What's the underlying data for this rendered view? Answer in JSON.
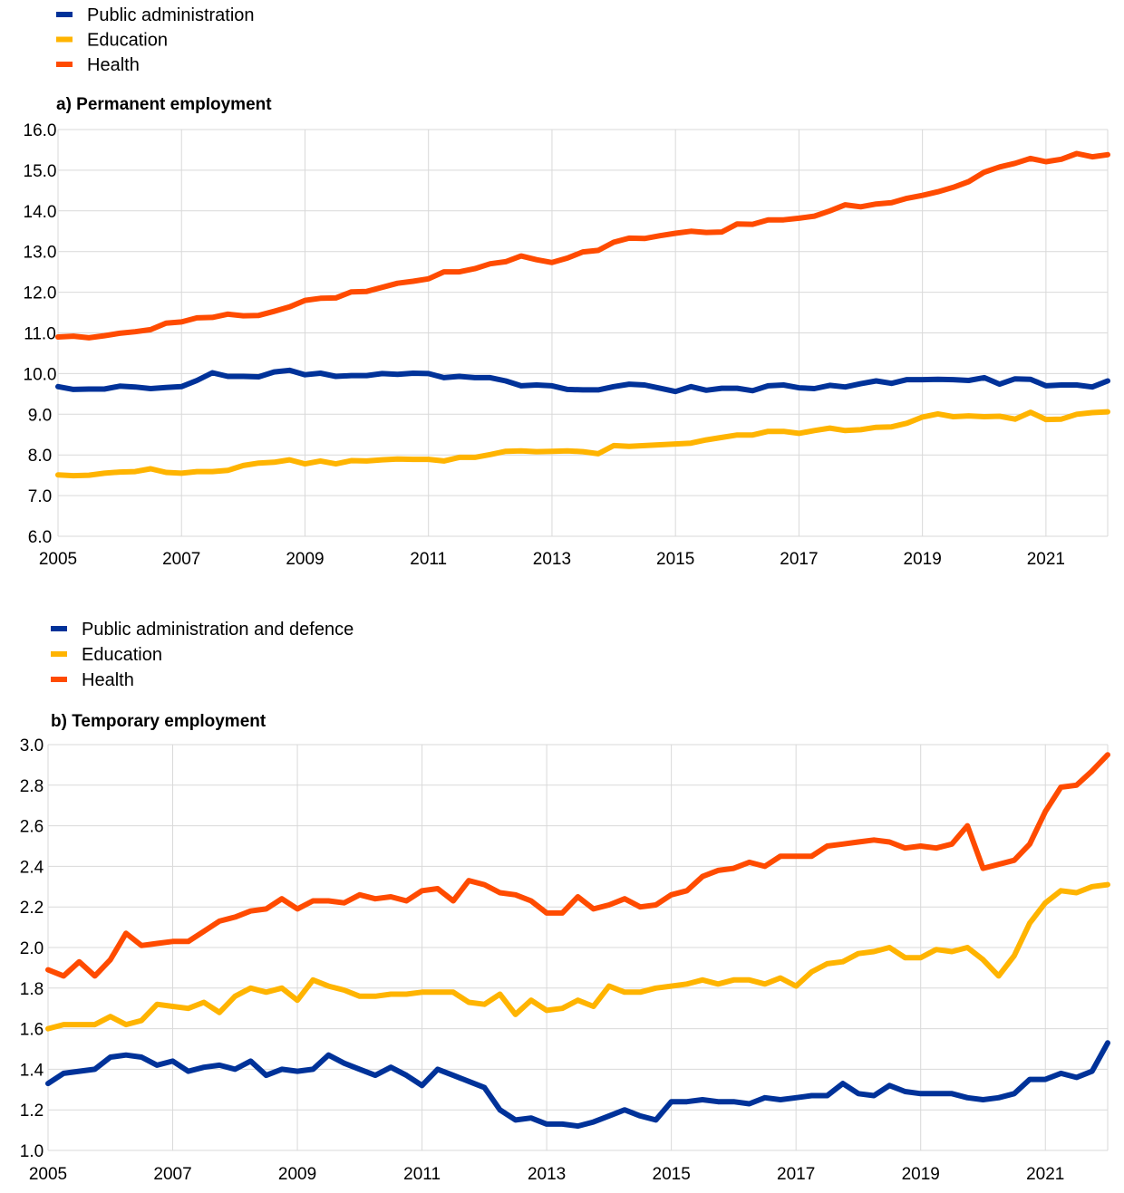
{
  "colors": {
    "blue": "#003299",
    "yellow": "#ffb400",
    "orange": "#ff4b00",
    "grid": "#d9d9d9"
  },
  "chart_data": [
    {
      "type": "line",
      "title": "a) Permanent employment",
      "xlabel": "",
      "ylabel": "",
      "ylim": [
        6.0,
        16.0
      ],
      "xlim": [
        2005,
        2022
      ],
      "yticks": [
        "6.0",
        "7.0",
        "8.0",
        "9.0",
        "10.0",
        "11.0",
        "12.0",
        "13.0",
        "14.0",
        "15.0",
        "16.0"
      ],
      "xticks": [
        "2005",
        "2007",
        "2009",
        "2011",
        "2013",
        "2015",
        "2017",
        "2019",
        "2021"
      ],
      "grid": true,
      "legend": "top-left",
      "x": [
        2005.0,
        2005.25,
        2005.5,
        2005.75,
        2006.0,
        2006.25,
        2006.5,
        2006.75,
        2007.0,
        2007.25,
        2007.5,
        2007.75,
        2008.0,
        2008.25,
        2008.5,
        2008.75,
        2009.0,
        2009.25,
        2009.5,
        2009.75,
        2010.0,
        2010.25,
        2010.5,
        2010.75,
        2011.0,
        2011.25,
        2011.5,
        2011.75,
        2012.0,
        2012.25,
        2012.5,
        2012.75,
        2013.0,
        2013.25,
        2013.5,
        2013.75,
        2014.0,
        2014.25,
        2014.5,
        2014.75,
        2015.0,
        2015.25,
        2015.5,
        2015.75,
        2016.0,
        2016.25,
        2016.5,
        2016.75,
        2017.0,
        2017.25,
        2017.5,
        2017.75,
        2018.0,
        2018.25,
        2018.5,
        2018.75,
        2019.0,
        2019.25,
        2019.5,
        2019.75,
        2020.0,
        2020.25,
        2020.5,
        2020.75,
        2021.0,
        2021.25,
        2021.5,
        2021.75,
        2022.0
      ],
      "series": [
        {
          "name": "Public administration",
          "color": "#003299",
          "values": [
            9.68,
            9.61,
            9.62,
            9.62,
            9.69,
            9.67,
            9.63,
            9.66,
            9.68,
            9.83,
            10.02,
            9.93,
            9.93,
            9.92,
            10.04,
            10.08,
            9.97,
            10.01,
            9.93,
            9.95,
            9.95,
            10.0,
            9.98,
            10.01,
            10.0,
            9.9,
            9.93,
            9.9,
            9.9,
            9.82,
            9.7,
            9.72,
            9.7,
            9.61,
            9.6,
            9.6,
            9.68,
            9.74,
            9.72,
            9.64,
            9.56,
            9.68,
            9.59,
            9.64,
            9.64,
            9.58,
            9.7,
            9.72,
            9.65,
            9.63,
            9.71,
            9.67,
            9.75,
            9.82,
            9.76,
            9.85,
            9.85,
            9.86,
            9.85,
            9.83,
            9.9,
            9.74,
            9.87,
            9.86,
            9.7,
            9.72,
            9.72,
            9.67,
            9.82
          ]
        },
        {
          "name": "Education",
          "color": "#ffb400",
          "values": [
            7.51,
            7.49,
            7.5,
            7.55,
            7.58,
            7.59,
            7.66,
            7.57,
            7.55,
            7.59,
            7.59,
            7.62,
            7.74,
            7.8,
            7.82,
            7.88,
            7.78,
            7.85,
            7.78,
            7.86,
            7.85,
            7.88,
            7.9,
            7.89,
            7.89,
            7.85,
            7.94,
            7.94,
            8.01,
            8.09,
            8.1,
            8.08,
            8.09,
            8.1,
            8.08,
            8.03,
            8.23,
            8.21,
            8.23,
            8.25,
            8.27,
            8.29,
            8.37,
            8.43,
            8.49,
            8.49,
            8.58,
            8.58,
            8.53,
            8.6,
            8.66,
            8.6,
            8.62,
            8.68,
            8.69,
            8.78,
            8.93,
            9.01,
            8.94,
            8.96,
            8.94,
            8.95,
            8.88,
            9.05,
            8.87,
            8.88,
            9.0,
            9.04,
            9.06
          ]
        },
        {
          "name": "Health",
          "color": "#ff4b00",
          "values": [
            10.9,
            10.92,
            10.88,
            10.93,
            10.99,
            11.03,
            11.08,
            11.24,
            11.27,
            11.37,
            11.38,
            11.46,
            11.42,
            11.43,
            11.53,
            11.64,
            11.8,
            11.85,
            11.86,
            12.01,
            12.02,
            12.12,
            12.22,
            12.27,
            12.33,
            12.5,
            12.5,
            12.58,
            12.7,
            12.75,
            12.89,
            12.8,
            12.73,
            12.84,
            12.99,
            13.03,
            13.23,
            13.33,
            13.32,
            13.39,
            13.45,
            13.5,
            13.47,
            13.48,
            13.68,
            13.67,
            13.78,
            13.78,
            13.82,
            13.87,
            14.0,
            14.15,
            14.1,
            14.17,
            14.2,
            14.31,
            14.38,
            14.47,
            14.58,
            14.72,
            14.95,
            15.08,
            15.17,
            15.29,
            15.21,
            15.27,
            15.41,
            15.33,
            15.38
          ]
        }
      ]
    },
    {
      "type": "line",
      "title": "b) Temporary employment",
      "xlabel": "",
      "ylabel": "",
      "ylim": [
        1.0,
        3.0
      ],
      "xlim": [
        2005,
        2022
      ],
      "yticks": [
        "1.0",
        "1.2",
        "1.4",
        "1.6",
        "1.8",
        "2.0",
        "2.2",
        "2.4",
        "2.6",
        "2.8",
        "3.0"
      ],
      "xticks": [
        "2005",
        "2007",
        "2009",
        "2011",
        "2013",
        "2015",
        "2017",
        "2019",
        "2021"
      ],
      "grid": true,
      "legend": "top-left",
      "x": [
        2005.0,
        2005.25,
        2005.5,
        2005.75,
        2006.0,
        2006.25,
        2006.5,
        2006.75,
        2007.0,
        2007.25,
        2007.5,
        2007.75,
        2008.0,
        2008.25,
        2008.5,
        2008.75,
        2009.0,
        2009.25,
        2009.5,
        2009.75,
        2010.0,
        2010.25,
        2010.5,
        2010.75,
        2011.0,
        2011.25,
        2011.5,
        2011.75,
        2012.0,
        2012.25,
        2012.5,
        2012.75,
        2013.0,
        2013.25,
        2013.5,
        2013.75,
        2014.0,
        2014.25,
        2014.5,
        2014.75,
        2015.0,
        2015.25,
        2015.5,
        2015.75,
        2016.0,
        2016.25,
        2016.5,
        2016.75,
        2017.0,
        2017.25,
        2017.5,
        2017.75,
        2018.0,
        2018.25,
        2018.5,
        2018.75,
        2019.0,
        2019.25,
        2019.5,
        2019.75,
        2020.0,
        2020.25,
        2020.5,
        2020.75,
        2021.0,
        2021.25,
        2021.5,
        2021.75,
        2022.0
      ],
      "series": [
        {
          "name": "Public administration and defence",
          "color": "#003299",
          "values": [
            1.33,
            1.38,
            1.39,
            1.4,
            1.46,
            1.47,
            1.46,
            1.42,
            1.44,
            1.39,
            1.41,
            1.42,
            1.4,
            1.44,
            1.37,
            1.4,
            1.39,
            1.4,
            1.47,
            1.43,
            1.4,
            1.37,
            1.41,
            1.37,
            1.32,
            1.4,
            1.37,
            1.34,
            1.31,
            1.2,
            1.15,
            1.16,
            1.13,
            1.13,
            1.12,
            1.14,
            1.17,
            1.2,
            1.17,
            1.15,
            1.24,
            1.24,
            1.25,
            1.24,
            1.24,
            1.23,
            1.26,
            1.25,
            1.26,
            1.27,
            1.27,
            1.33,
            1.28,
            1.27,
            1.32,
            1.29,
            1.28,
            1.28,
            1.28,
            1.26,
            1.25,
            1.26,
            1.28,
            1.35,
            1.35,
            1.38,
            1.36,
            1.39,
            1.53
          ]
        },
        {
          "name": "Education",
          "color": "#ffb400",
          "values": [
            1.6,
            1.62,
            1.62,
            1.62,
            1.66,
            1.62,
            1.64,
            1.72,
            1.71,
            1.7,
            1.73,
            1.68,
            1.76,
            1.8,
            1.78,
            1.8,
            1.74,
            1.84,
            1.81,
            1.79,
            1.76,
            1.76,
            1.77,
            1.77,
            1.78,
            1.78,
            1.78,
            1.73,
            1.72,
            1.77,
            1.67,
            1.74,
            1.69,
            1.7,
            1.74,
            1.71,
            1.81,
            1.78,
            1.78,
            1.8,
            1.81,
            1.82,
            1.84,
            1.82,
            1.84,
            1.84,
            1.82,
            1.85,
            1.81,
            1.88,
            1.92,
            1.93,
            1.97,
            1.98,
            2.0,
            1.95,
            1.95,
            1.99,
            1.98,
            2.0,
            1.94,
            1.86,
            1.96,
            2.12,
            2.22,
            2.28,
            2.27,
            2.3,
            2.31
          ]
        },
        {
          "name": "Health",
          "color": "#ff4b00",
          "values": [
            1.89,
            1.86,
            1.93,
            1.86,
            1.94,
            2.07,
            2.01,
            2.02,
            2.03,
            2.03,
            2.08,
            2.13,
            2.15,
            2.18,
            2.19,
            2.24,
            2.19,
            2.23,
            2.23,
            2.22,
            2.26,
            2.24,
            2.25,
            2.23,
            2.28,
            2.29,
            2.23,
            2.33,
            2.31,
            2.27,
            2.26,
            2.23,
            2.17,
            2.17,
            2.25,
            2.19,
            2.21,
            2.24,
            2.2,
            2.21,
            2.26,
            2.28,
            2.35,
            2.38,
            2.39,
            2.42,
            2.4,
            2.45,
            2.45,
            2.45,
            2.5,
            2.51,
            2.52,
            2.53,
            2.52,
            2.49,
            2.5,
            2.49,
            2.51,
            2.6,
            2.39,
            2.41,
            2.43,
            2.51,
            2.67,
            2.79,
            2.8,
            2.87,
            2.95
          ]
        }
      ]
    }
  ]
}
